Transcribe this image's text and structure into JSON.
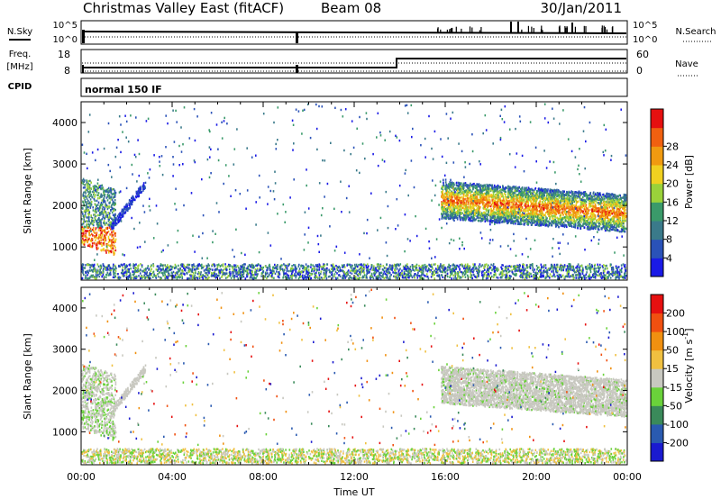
{
  "header": {
    "station": "Christmas Valley East (fitACF)",
    "beam": "Beam 08",
    "date": "30/Jan/2011"
  },
  "top_panels": {
    "nsky_label": "N.Sky",
    "nsearch_label": "N.Search",
    "noise_ticks_left": [
      "10^5",
      "10^0"
    ],
    "noise_ticks_right": [
      "10^5",
      "10^0"
    ],
    "freq_label": "Freq.",
    "freq_unit": "[MHz]",
    "freq_ticks": [
      "18",
      "8"
    ],
    "nave_label": "Nave",
    "nave_ticks": [
      "60",
      "0"
    ],
    "cpid_label": "CPID",
    "cpid_value": "normal 150 IF"
  },
  "chart_data": [
    {
      "type": "heatmap",
      "name": "Power",
      "ylabel": "Slant Range [km]",
      "xlabel": "Time UT",
      "x_ticks": [
        "00:00",
        "04:00",
        "08:00",
        "12:00",
        "16:00",
        "20:00",
        "00:00"
      ],
      "y_ticks": [
        1000,
        2000,
        3000,
        4000
      ],
      "ylim": [
        200,
        4500
      ],
      "xlim_hours": [
        0,
        24
      ],
      "colorbar": {
        "label": "Power [dB]",
        "ticks": [
          4,
          8,
          12,
          16,
          20,
          24,
          28
        ],
        "colors": [
          "#1a1ae6",
          "#2a52b8",
          "#3a7a8a",
          "#3a9a6a",
          "#9ad23a",
          "#f0d020",
          "#f09a10",
          "#f06010",
          "#e61010"
        ]
      }
    },
    {
      "type": "heatmap",
      "name": "Velocity",
      "ylabel": "Slant Range [km]",
      "xlabel": "Time UT",
      "x_ticks": [
        "00:00",
        "04:00",
        "08:00",
        "12:00",
        "16:00",
        "20:00",
        "00:00"
      ],
      "y_ticks": [
        1000,
        2000,
        3000,
        4000
      ],
      "ylim": [
        200,
        4500
      ],
      "xlim_hours": [
        0,
        24
      ],
      "colorbar": {
        "label": "Velocity [m s",
        "label_sup": "-1",
        "label_end": "]",
        "ticks": [
          200,
          100,
          50,
          15,
          -15,
          -50,
          -100,
          -200
        ],
        "colors": [
          "#1a1ad0",
          "#2a5ab0",
          "#3a8a5a",
          "#6ad23a",
          "#c8c8c0",
          "#f0c040",
          "#f09010",
          "#f05010",
          "#e61010"
        ]
      }
    }
  ],
  "x_axis": {
    "label": "Time UT",
    "ticks": [
      "00:00",
      "04:00",
      "08:00",
      "12:00",
      "16:00",
      "20:00",
      "00:00"
    ]
  }
}
